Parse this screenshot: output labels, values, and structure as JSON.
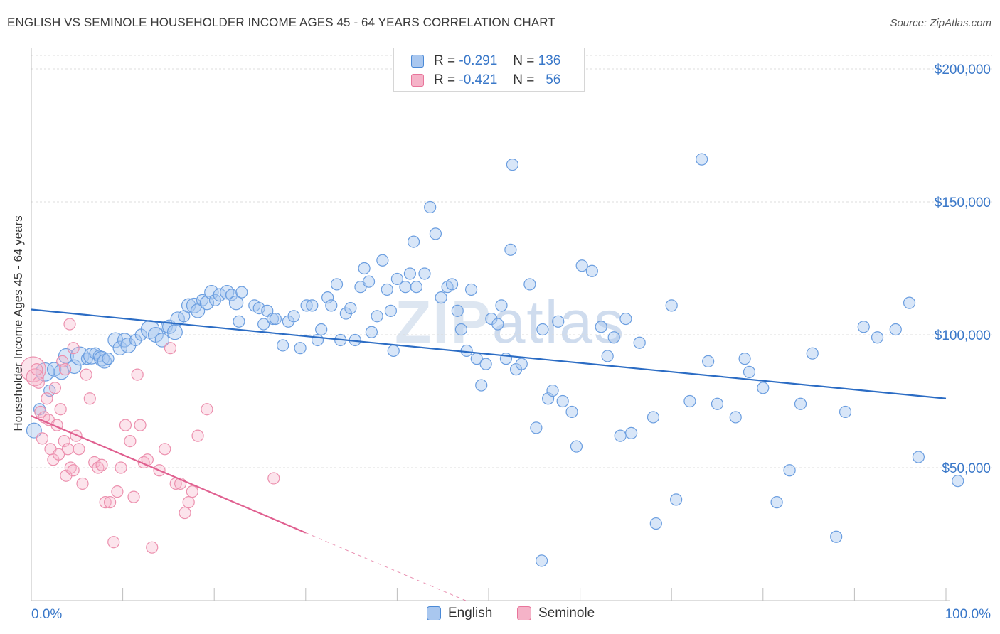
{
  "title": "ENGLISH VS SEMINOLE HOUSEHOLDER INCOME AGES 45 - 64 YEARS CORRELATION CHART",
  "source": "Source: ZipAtlas.com",
  "watermark": {
    "zip": "ZIP",
    "atlas": "atlas"
  },
  "legend_top": [
    {
      "r_label": "R = ",
      "r_value": "-0.291",
      "n_label": "N = ",
      "n_value": "136",
      "color": "#a9c7ef"
    },
    {
      "r_label": "R = ",
      "r_value": "-0.421",
      "n_label": "N = ",
      "n_value": "56",
      "color": "#f5b3c8"
    }
  ],
  "chart_data": {
    "type": "scatter",
    "ylabel": "Householder Income Ages 45 - 64 years",
    "xlabel": "",
    "xlim": [
      0,
      100
    ],
    "ylim": [
      0,
      200000
    ],
    "x_tick_labels": [
      "0.0%",
      "100.0%"
    ],
    "y_ticks": [
      50000,
      100000,
      150000,
      200000
    ],
    "y_tick_labels": [
      "$50,000",
      "$100,000",
      "$150,000",
      "$200,000"
    ],
    "grid": true,
    "legend_position": "top-center",
    "colors": {
      "English": "#4a89d6",
      "Seminole": "#e8759b",
      "english_line": "#2b6cc4",
      "seminole_line": "#e06090"
    },
    "series": [
      {
        "name": "English",
        "trend": {
          "x": [
            0,
            100
          ],
          "y": [
            109500,
            76000
          ]
        },
        "points": [
          [
            0.3,
            64000,
            1.3
          ],
          [
            0.9,
            72000,
            1
          ],
          [
            1.5,
            86000,
            1.6
          ],
          [
            2.0,
            79000,
            1
          ],
          [
            2.5,
            87000,
            1.2
          ],
          [
            3.3,
            86000,
            1.3
          ],
          [
            3.8,
            92000,
            1.3
          ],
          [
            4.7,
            88000,
            1.2
          ],
          [
            5.3,
            92000,
            1.6
          ],
          [
            6.1,
            91000,
            1
          ],
          [
            6.6,
            92000,
            1.4
          ],
          [
            7.0,
            93000,
            1
          ],
          [
            7.4,
            92000,
            1
          ],
          [
            7.7,
            91000,
            1.3
          ],
          [
            8.0,
            90000,
            1.2
          ],
          [
            8.4,
            91000,
            1
          ],
          [
            9.2,
            98000,
            1.3
          ],
          [
            9.7,
            95000,
            1.2
          ],
          [
            10.2,
            98000,
            1.2
          ],
          [
            10.6,
            96000,
            1.3
          ],
          [
            11.4,
            98000,
            1
          ],
          [
            12.0,
            100000,
            1
          ],
          [
            13.0,
            102000,
            1.6
          ],
          [
            13.6,
            100000,
            1.3
          ],
          [
            14.3,
            98000,
            1.2
          ],
          [
            14.8,
            103000,
            1
          ],
          [
            15.1,
            103000,
            1.2
          ],
          [
            15.7,
            101000,
            1.3
          ],
          [
            16.0,
            106000,
            1.2
          ],
          [
            16.7,
            107000,
            1
          ],
          [
            17.2,
            111000,
            1.2
          ],
          [
            17.8,
            111000,
            1.3
          ],
          [
            18.2,
            109000,
            1.2
          ],
          [
            18.7,
            113000,
            1
          ],
          [
            19.2,
            112000,
            1.2
          ],
          [
            19.7,
            116000,
            1.2
          ],
          [
            20.1,
            113000,
            1
          ],
          [
            20.6,
            115000,
            1.1
          ],
          [
            21.4,
            116000,
            1.2
          ],
          [
            21.9,
            115000,
            1
          ],
          [
            22.4,
            112000,
            1.2
          ],
          [
            23.0,
            116000,
            1
          ],
          [
            22.7,
            105000,
            1
          ],
          [
            24.4,
            111000,
            1
          ],
          [
            24.9,
            110000,
            1
          ],
          [
            25.4,
            104000,
            1
          ],
          [
            25.8,
            109000,
            1
          ],
          [
            26.4,
            106000,
            1
          ],
          [
            26.7,
            106000,
            1
          ],
          [
            27.5,
            96000,
            1
          ],
          [
            28.1,
            105000,
            1
          ],
          [
            28.7,
            107000,
            1
          ],
          [
            29.4,
            95000,
            1
          ],
          [
            30.1,
            111000,
            1
          ],
          [
            30.7,
            111000,
            1
          ],
          [
            31.3,
            98000,
            1
          ],
          [
            31.7,
            102000,
            1
          ],
          [
            32.4,
            114000,
            1
          ],
          [
            32.8,
            111000,
            1
          ],
          [
            33.4,
            119000,
            1
          ],
          [
            33.8,
            98000,
            1
          ],
          [
            34.4,
            108000,
            1
          ],
          [
            34.9,
            110000,
            1
          ],
          [
            35.4,
            98000,
            1
          ],
          [
            36.0,
            118000,
            1
          ],
          [
            36.4,
            125000,
            1
          ],
          [
            36.9,
            120000,
            1
          ],
          [
            37.2,
            101000,
            1
          ],
          [
            37.8,
            107000,
            1
          ],
          [
            38.4,
            128000,
            1
          ],
          [
            38.9,
            117000,
            1
          ],
          [
            39.3,
            109000,
            1
          ],
          [
            39.6,
            94000,
            1
          ],
          [
            40.0,
            121000,
            1
          ],
          [
            40.9,
            118000,
            1
          ],
          [
            41.4,
            123000,
            1
          ],
          [
            41.8,
            135000,
            1
          ],
          [
            42.1,
            118000,
            1
          ],
          [
            43.0,
            123000,
            1
          ],
          [
            43.6,
            148000,
            1
          ],
          [
            44.2,
            138000,
            1
          ],
          [
            44.8,
            114000,
            1
          ],
          [
            45.5,
            118000,
            1
          ],
          [
            46.0,
            119000,
            1
          ],
          [
            46.6,
            109000,
            1
          ],
          [
            47.0,
            102000,
            1
          ],
          [
            47.6,
            94000,
            1
          ],
          [
            48.1,
            117000,
            1
          ],
          [
            48.7,
            91000,
            1
          ],
          [
            49.2,
            81000,
            1
          ],
          [
            49.7,
            89000,
            1
          ],
          [
            50.3,
            106000,
            1
          ],
          [
            51.0,
            104000,
            1
          ],
          [
            51.4,
            111000,
            1
          ],
          [
            51.9,
            91000,
            1
          ],
          [
            52.4,
            132000,
            1
          ],
          [
            52.6,
            164000,
            1
          ],
          [
            53.0,
            87000,
            1
          ],
          [
            53.6,
            89000,
            1
          ],
          [
            54.5,
            119000,
            1
          ],
          [
            55.2,
            65000,
            1
          ],
          [
            55.9,
            102000,
            1
          ],
          [
            56.5,
            76000,
            1
          ],
          [
            57.0,
            79000,
            1
          ],
          [
            57.6,
            105000,
            1
          ],
          [
            58.1,
            75000,
            1
          ],
          [
            59.1,
            71000,
            1
          ],
          [
            59.6,
            58000,
            1
          ],
          [
            60.2,
            126000,
            1
          ],
          [
            61.3,
            124000,
            1
          ],
          [
            62.3,
            103000,
            1
          ],
          [
            63.0,
            92000,
            1
          ],
          [
            63.7,
            99000,
            1
          ],
          [
            64.4,
            62000,
            1
          ],
          [
            65.0,
            106000,
            1
          ],
          [
            65.6,
            63000,
            1
          ],
          [
            66.5,
            97000,
            1
          ],
          [
            68.0,
            69000,
            1
          ],
          [
            68.3,
            29000,
            1
          ],
          [
            70.0,
            111000,
            1
          ],
          [
            70.5,
            38000,
            1
          ],
          [
            72.0,
            75000,
            1
          ],
          [
            73.3,
            166000,
            1
          ],
          [
            74.0,
            90000,
            1
          ],
          [
            75.0,
            74000,
            1
          ],
          [
            77.0,
            69000,
            1
          ],
          [
            78.0,
            91000,
            1
          ],
          [
            78.5,
            86000,
            1
          ],
          [
            80.0,
            80000,
            1
          ],
          [
            81.5,
            37000,
            1
          ],
          [
            82.9,
            49000,
            1
          ],
          [
            84.1,
            74000,
            1
          ],
          [
            85.4,
            93000,
            1
          ],
          [
            88.0,
            24000,
            1
          ],
          [
            89.0,
            71000,
            1
          ],
          [
            91.0,
            103000,
            1
          ],
          [
            92.5,
            99000,
            1
          ],
          [
            94.5,
            102000,
            1
          ],
          [
            96.0,
            112000,
            1
          ],
          [
            97.0,
            54000,
            1
          ],
          [
            101.3,
            45000,
            1
          ],
          [
            55.8,
            15000,
            1
          ]
        ]
      },
      {
        "name": "Seminole",
        "trend": {
          "x": [
            0,
            30
          ],
          "y": [
            69500,
            25500
          ]
        },
        "trend_dashed": {
          "x": [
            30,
            47.5
          ],
          "y": [
            25500,
            0
          ]
        },
        "points": [
          [
            0.2,
            87000,
            2.2
          ],
          [
            0.4,
            84000,
            1.5
          ],
          [
            0.6,
            87000,
            1
          ],
          [
            0.8,
            82000,
            1
          ],
          [
            1.0,
            71000,
            1
          ],
          [
            1.2,
            61000,
            1
          ],
          [
            1.4,
            69000,
            1
          ],
          [
            1.7,
            76000,
            1
          ],
          [
            1.9,
            68000,
            1
          ],
          [
            2.1,
            57000,
            1
          ],
          [
            2.4,
            53000,
            1
          ],
          [
            2.6,
            80000,
            1
          ],
          [
            2.8,
            66000,
            1
          ],
          [
            3.0,
            55000,
            1
          ],
          [
            3.2,
            72000,
            1
          ],
          [
            3.4,
            90000,
            1
          ],
          [
            3.6,
            60000,
            1
          ],
          [
            3.8,
            47000,
            1
          ],
          [
            4.0,
            57000,
            1
          ],
          [
            4.3,
            50000,
            1
          ],
          [
            4.6,
            49000,
            1
          ],
          [
            4.9,
            62000,
            1
          ],
          [
            5.2,
            57000,
            1
          ],
          [
            5.6,
            44000,
            1
          ],
          [
            6.0,
            85000,
            1
          ],
          [
            6.4,
            76000,
            1
          ],
          [
            6.9,
            52000,
            1
          ],
          [
            7.3,
            50000,
            1
          ],
          [
            7.7,
            51000,
            1
          ],
          [
            8.1,
            37000,
            1
          ],
          [
            8.6,
            37000,
            1
          ],
          [
            9.0,
            22000,
            1
          ],
          [
            9.4,
            41000,
            1
          ],
          [
            9.8,
            50000,
            1
          ],
          [
            10.3,
            66000,
            1
          ],
          [
            10.8,
            60000,
            1
          ],
          [
            11.2,
            39000,
            1
          ],
          [
            11.6,
            85000,
            1
          ],
          [
            11.9,
            66000,
            1
          ],
          [
            12.3,
            52000,
            1
          ],
          [
            12.7,
            53000,
            1
          ],
          [
            13.2,
            20000,
            1
          ],
          [
            14.0,
            49000,
            1
          ],
          [
            14.6,
            57000,
            1
          ],
          [
            15.2,
            95000,
            1
          ],
          [
            15.8,
            44000,
            1
          ],
          [
            16.3,
            44000,
            1
          ],
          [
            16.8,
            33000,
            1
          ],
          [
            17.2,
            37000,
            1
          ],
          [
            17.6,
            41000,
            1
          ],
          [
            18.2,
            62000,
            1
          ],
          [
            19.2,
            72000,
            1
          ],
          [
            4.2,
            104000,
            1
          ],
          [
            4.6,
            95000,
            1
          ],
          [
            3.7,
            87000,
            1
          ],
          [
            26.5,
            46000,
            1
          ]
        ]
      }
    ]
  },
  "bottom_legend": [
    {
      "label": "English",
      "color": "#a9c7ef"
    },
    {
      "label": "Seminole",
      "color": "#f5b3c8"
    }
  ]
}
